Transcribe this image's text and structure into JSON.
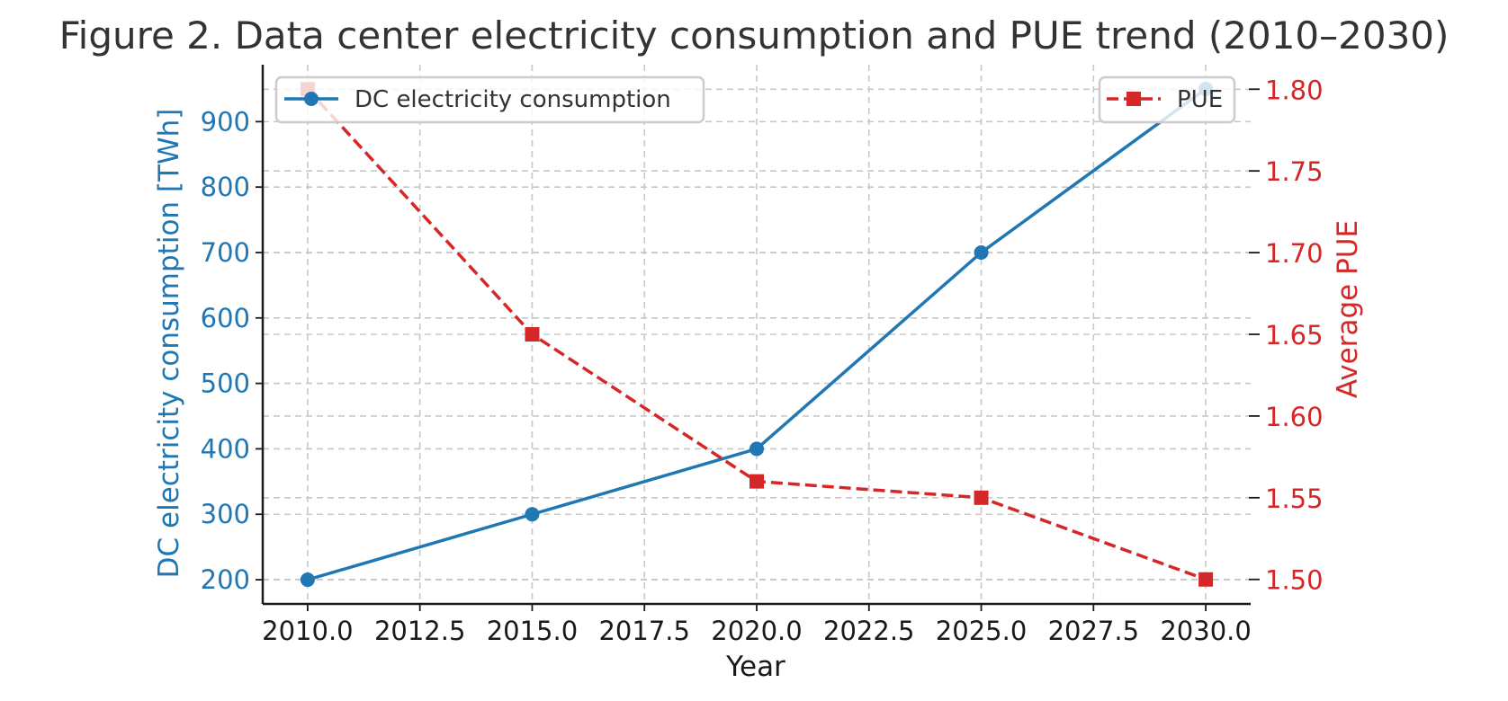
{
  "chart_data": {
    "type": "line",
    "title": "Figure 2. Data center electricity consumption and PUE trend (2010–2030)",
    "xlabel": "Year",
    "x": [
      2010,
      2015,
      2020,
      2025,
      2030
    ],
    "xlim": [
      2009,
      2031
    ],
    "xticks": [
      2010.0,
      2012.5,
      2015.0,
      2017.5,
      2020.0,
      2022.5,
      2025.0,
      2027.5,
      2030.0
    ],
    "xtick_labels": [
      "2010.0",
      "2012.5",
      "2015.0",
      "2017.5",
      "2020.0",
      "2022.5",
      "2025.0",
      "2027.5",
      "2030.0"
    ],
    "grid": true,
    "series": [
      {
        "name": "DC electricity consumption",
        "axis": "left",
        "values": [
          200,
          300,
          400,
          700,
          950
        ],
        "color": "#1f77b4",
        "linestyle": "solid",
        "marker": "circle"
      },
      {
        "name": "PUE",
        "axis": "right",
        "values": [
          1.8,
          1.65,
          1.56,
          1.55,
          1.5
        ],
        "color": "#d62728",
        "linestyle": "dashed",
        "marker": "square"
      }
    ],
    "left_axis": {
      "label": "DC electricity consumption [TWh]",
      "color": "#1f77b4",
      "ylim": [
        163,
        987
      ],
      "ticks": [
        200,
        300,
        400,
        500,
        600,
        700,
        800,
        900
      ],
      "tick_labels": [
        "200",
        "300",
        "400",
        "500",
        "600",
        "700",
        "800",
        "900"
      ]
    },
    "right_axis": {
      "label": "Average PUE",
      "color": "#d62728",
      "ylim": [
        1.485,
        1.815
      ],
      "ticks": [
        1.5,
        1.55,
        1.6,
        1.65,
        1.7,
        1.75,
        1.8
      ],
      "tick_labels": [
        "1.50",
        "1.55",
        "1.60",
        "1.65",
        "1.70",
        "1.75",
        "1.80"
      ]
    },
    "legends": [
      {
        "placement": "top-left",
        "entries": [
          "DC electricity consumption"
        ]
      },
      {
        "placement": "top-right",
        "entries": [
          "PUE"
        ]
      }
    ]
  }
}
